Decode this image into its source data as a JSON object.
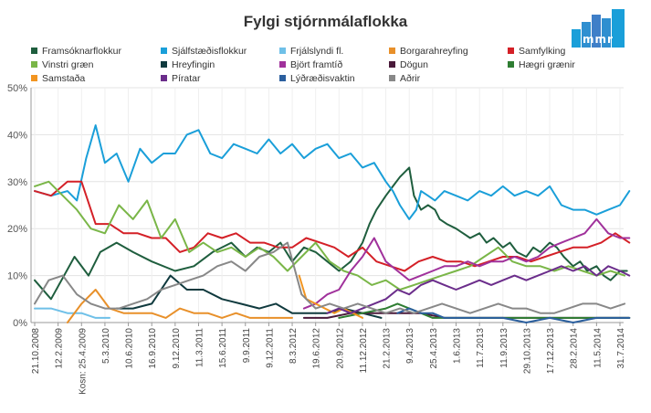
{
  "chart_data": {
    "type": "line",
    "title": "Fylgi stjórnmálaflokka",
    "logo_text": "mmr",
    "ylim": [
      0,
      50
    ],
    "y_ticks": [
      "0%",
      "10%",
      "20%",
      "30%",
      "40%",
      "50%"
    ],
    "x_tick_labels": [
      "21.10.2008",
      "12.2.2009",
      "Kosn: 25.4.2009",
      "5.3.2010",
      "10.6.2010",
      "16.9.2010",
      "9.12.2010",
      "11.3.2011",
      "15.6.2011",
      "9.9.2011",
      "9.12.2011",
      "8.3.2012",
      "19.6.2012",
      "20.9.2012",
      "11.12.2012",
      "21.2.2013",
      "9.4.2013",
      "25.4.2013",
      "1.6.2013",
      "11.7.2013",
      "11.9.2013",
      "29.10.2013",
      "17.12.2013",
      "28.2.2014",
      "11.5.2014",
      "31.7.2014"
    ],
    "grid": true,
    "legend_position": "top",
    "series": [
      {
        "name": "Framsóknarflokkur",
        "color": "#1f5e3e",
        "x": [
          0,
          0.7,
          1.7,
          2.3,
          2.8,
          3.5,
          4.2,
          5,
          6,
          6.8,
          7.6,
          8.4,
          9,
          9.5,
          10,
          10.5,
          11,
          11.5,
          12,
          12.5,
          13,
          13.5,
          14,
          14.3,
          14.6,
          15,
          15.3,
          15.6,
          16,
          16.2,
          16.4,
          16.5,
          16.8,
          17.1,
          17.3,
          17.6,
          18,
          18.3,
          18.6,
          19,
          19.3,
          19.6,
          20,
          20.3,
          20.6,
          21,
          21.3,
          21.6,
          22,
          22.3,
          22.6,
          23,
          23.3,
          23.6,
          24,
          24.3,
          24.6,
          25,
          25.3
        ],
        "values": [
          9,
          5,
          14,
          10,
          15,
          17,
          15,
          13,
          11,
          12,
          15,
          17,
          14,
          16,
          15,
          17,
          13,
          16,
          15,
          13,
          11,
          13,
          17,
          21,
          24,
          27,
          29,
          31,
          33,
          27,
          25,
          24,
          25,
          24,
          22,
          21,
          20,
          19,
          18,
          19,
          17,
          18,
          16,
          17,
          15,
          14,
          16,
          15,
          17,
          16,
          14,
          12,
          13,
          11,
          12,
          10,
          9,
          11,
          11
        ]
      },
      {
        "name": "Sjálfstæðisflokkur",
        "color": "#1a9fd9",
        "x": [
          0,
          0.7,
          1.4,
          1.8,
          2.2,
          2.6,
          3,
          3.5,
          4,
          4.5,
          5,
          5.5,
          6,
          6.5,
          7,
          7.5,
          8,
          8.5,
          9,
          9.5,
          10,
          10.5,
          11,
          11.5,
          12,
          12.5,
          13,
          13.5,
          14,
          14.5,
          15,
          15.3,
          15.6,
          16,
          16.3,
          16.5,
          16.8,
          17.1,
          17.5,
          18,
          18.5,
          19,
          19.5,
          20,
          20.5,
          21,
          21.5,
          22,
          22.5,
          23,
          23.5,
          24,
          24.5,
          25,
          25.4
        ],
        "values": [
          28,
          27,
          28,
          26,
          35,
          42,
          34,
          36,
          30,
          37,
          34,
          36,
          36,
          40,
          41,
          36,
          35,
          38,
          37,
          36,
          39,
          36,
          38,
          35,
          37,
          38,
          35,
          36,
          33,
          34,
          30,
          28,
          25,
          22,
          24,
          28,
          27,
          26,
          28,
          27,
          26,
          28,
          27,
          29,
          27,
          28,
          27,
          29,
          25,
          24,
          24,
          23,
          24,
          25,
          28
        ]
      },
      {
        "name": "Frjálslyndi fl.",
        "color": "#6fc0e8",
        "x": [
          0,
          0.7,
          1.4,
          2,
          2.6,
          3.2
        ],
        "values": [
          3,
          3,
          2,
          2,
          1,
          1
        ]
      },
      {
        "name": "Borgarahreyfing",
        "color": "#e8902a",
        "x": [
          1.4,
          2,
          2.6,
          3.2,
          3.8,
          4.4,
          5,
          5.6,
          6.2,
          6.8,
          7.4,
          8,
          8.6,
          9.2,
          9.8,
          10.4,
          11
        ],
        "values": [
          0,
          4,
          7,
          3,
          2,
          2,
          2,
          1,
          3,
          2,
          2,
          1,
          2,
          1,
          1,
          1,
          1
        ]
      },
      {
        "name": "Samfylking",
        "color": "#d42027",
        "x": [
          0,
          0.7,
          1.4,
          2,
          2.6,
          3.2,
          3.8,
          4.4,
          5,
          5.6,
          6.2,
          6.8,
          7.4,
          8,
          8.6,
          9.2,
          9.8,
          10.4,
          11,
          11.6,
          12.2,
          12.8,
          13.4,
          14,
          14.6,
          15.2,
          15.8,
          16.4,
          17,
          17.6,
          18.2,
          18.8,
          19.4,
          20,
          20.6,
          21.2,
          21.8,
          22.4,
          23,
          23.6,
          24.2,
          24.8,
          25.4
        ],
        "values": [
          28,
          27,
          30,
          30,
          21,
          21,
          19,
          19,
          18,
          18,
          15,
          16,
          19,
          18,
          19,
          17,
          17,
          16,
          16,
          18,
          17,
          16,
          14,
          16,
          13,
          12,
          11,
          13,
          14,
          13,
          13,
          12,
          13,
          14,
          14,
          13,
          14,
          15,
          16,
          16,
          17,
          19,
          17
        ]
      },
      {
        "name": "Vinstri græn",
        "color": "#7ab648",
        "x": [
          0,
          0.6,
          1.2,
          1.8,
          2.4,
          3,
          3.6,
          4.2,
          4.8,
          5.4,
          6,
          6.6,
          7.2,
          7.8,
          8.4,
          9,
          9.6,
          10.2,
          10.8,
          11.4,
          12,
          12.6,
          13.2,
          13.8,
          14.4,
          15,
          15.6,
          16.2,
          16.8,
          17.4,
          18,
          18.6,
          19.2,
          19.8,
          20.4,
          21,
          21.6,
          22.2,
          22.8,
          23.4,
          24,
          24.6,
          25.2
        ],
        "values": [
          29,
          30,
          27,
          24,
          20,
          19,
          25,
          22,
          26,
          18,
          22,
          15,
          17,
          15,
          16,
          14,
          16,
          14,
          11,
          14,
          17,
          13,
          11,
          10,
          8,
          9,
          7,
          8,
          9,
          10,
          11,
          12,
          14,
          16,
          13,
          12,
          12,
          11,
          12,
          11,
          10,
          11,
          10
        ]
      },
      {
        "name": "Hreyfingin",
        "color": "#103a3e",
        "x": [
          3.5,
          4.2,
          5,
          5.8,
          6.5,
          7.2,
          8,
          8.8,
          9.6,
          10.3,
          11,
          11.8,
          12.5,
          13.2,
          14,
          14.8
        ],
        "values": [
          3,
          3,
          4,
          10,
          7,
          7,
          5,
          4,
          3,
          4,
          2,
          2,
          2,
          3,
          2,
          1
        ]
      },
      {
        "name": "Björt framtíð",
        "color": "#a0319b",
        "x": [
          11.5,
          12,
          12.5,
          13,
          13.5,
          14,
          14.5,
          15,
          15.5,
          16,
          16.5,
          17,
          17.5,
          18,
          18.5,
          19,
          19.5,
          20,
          20.5,
          21,
          21.5,
          22,
          22.5,
          23,
          23.5,
          24,
          24.5,
          25,
          25.4
        ],
        "values": [
          3,
          4,
          6,
          7,
          11,
          14,
          18,
          13,
          11,
          9,
          10,
          11,
          12,
          12,
          13,
          12,
          13,
          13,
          14,
          13,
          14,
          16,
          17,
          18,
          19,
          22,
          19,
          18,
          18
        ]
      },
      {
        "name": "Dögun",
        "color": "#4a1a3a",
        "x": [
          11.5,
          12.5,
          13.5,
          14.5,
          15.5,
          16.5,
          17.5,
          18.5,
          19.5,
          20.5,
          21.5,
          22.5,
          23.5,
          24.5,
          25.4
        ],
        "values": [
          1,
          1,
          2,
          2,
          2,
          2,
          1,
          1,
          1,
          1,
          1,
          1,
          1,
          1,
          1
        ]
      },
      {
        "name": "Hægri grænir",
        "color": "#2e7d32",
        "x": [
          13,
          14,
          15,
          15.5,
          16,
          16.5,
          17,
          18,
          19,
          20,
          21,
          22,
          23,
          24,
          25.4
        ],
        "values": [
          1,
          2,
          3,
          4,
          3,
          2,
          1,
          1,
          1,
          1,
          1,
          1,
          1,
          1,
          1
        ]
      },
      {
        "name": "Samstaða",
        "color": "#f29521",
        "x": [
          11.3,
          11.6,
          12,
          12.4,
          12.8,
          13.2,
          13.6,
          14
        ],
        "values": [
          10,
          5,
          4,
          3,
          2,
          3,
          2,
          1
        ]
      },
      {
        "name": "Píratar",
        "color": "#6b2d8b",
        "x": [
          12.5,
          13,
          13.5,
          14,
          14.5,
          15,
          15.5,
          16,
          16.5,
          17,
          17.5,
          18,
          18.5,
          19,
          19.5,
          20,
          20.5,
          21,
          21.5,
          22,
          22.5,
          23,
          23.5,
          24,
          24.5,
          25,
          25.4
        ],
        "values": [
          2,
          3,
          2,
          3,
          4,
          5,
          7,
          6,
          8,
          9,
          8,
          7,
          8,
          9,
          8,
          9,
          10,
          9,
          10,
          11,
          12,
          11,
          12,
          10,
          12,
          11,
          10
        ]
      },
      {
        "name": "Lýðræðisvaktin",
        "color": "#2b5f9e",
        "x": [
          15.5,
          16,
          16.5,
          17,
          17.5,
          18,
          18.5,
          19,
          20,
          21,
          22,
          23,
          24,
          25.4
        ],
        "values": [
          2,
          3,
          2,
          2,
          1,
          1,
          1,
          1,
          1,
          0,
          1,
          0,
          1,
          1
        ]
      },
      {
        "name": "Aðrir",
        "color": "#888888",
        "x": [
          0,
          0.6,
          1.2,
          1.8,
          2.4,
          3,
          3.6,
          4.2,
          4.8,
          5.4,
          6,
          6.6,
          7.2,
          7.8,
          8.4,
          9,
          9.6,
          10.2,
          10.8,
          11.4,
          12,
          12.6,
          13.2,
          13.8,
          14.4,
          15,
          15.6,
          16.2,
          16.8,
          17.4,
          18,
          18.6,
          19.2,
          19.8,
          20.4,
          21,
          21.6,
          22.2,
          22.8,
          23.4,
          24,
          24.6,
          25.2
        ],
        "values": [
          4,
          9,
          10,
          6,
          4,
          3,
          3,
          4,
          5,
          7,
          8,
          9,
          10,
          12,
          13,
          11,
          14,
          15,
          17,
          6,
          3,
          4,
          3,
          4,
          3,
          2,
          3,
          2,
          3,
          4,
          3,
          2,
          3,
          4,
          3,
          3,
          2,
          2,
          3,
          4,
          4,
          3,
          4
        ]
      }
    ]
  }
}
